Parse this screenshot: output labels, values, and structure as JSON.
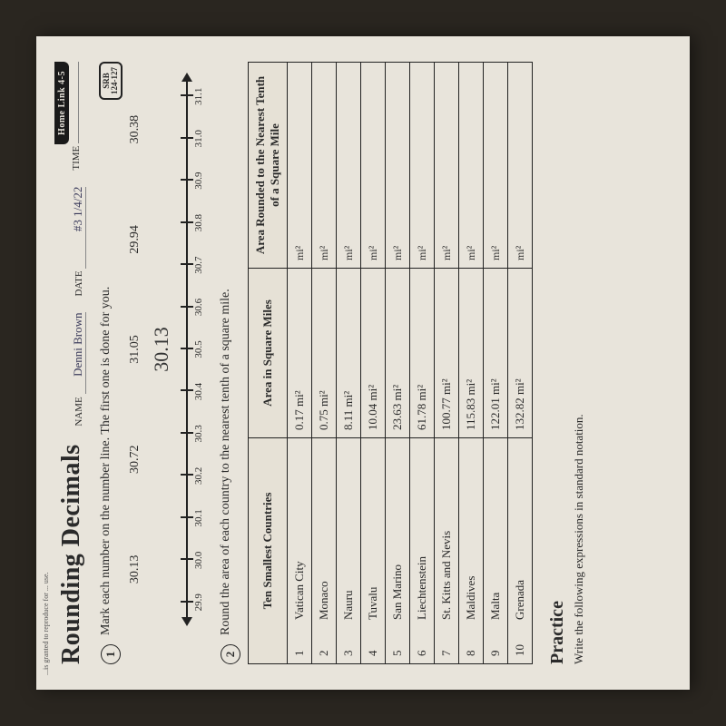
{
  "header": {
    "title": "Rounding Decimals",
    "home_link": "Home Link 4-5",
    "name_label": "NAME",
    "date_label": "DATE",
    "time_label": "TIME",
    "name_value": "Denni Brown",
    "date_value": "#3 1/4/22",
    "srb_top": "SRB",
    "srb_bottom": "124-127"
  },
  "p1": {
    "num": "1",
    "text": "Mark each number on the number line. The first one is done for you.",
    "decimals": [
      "30.13",
      "30.72",
      "31.05",
      "29.94",
      "30.38"
    ],
    "handwritten": "30.13",
    "ticks": [
      "29.9",
      "30.0",
      "30.1",
      "30.2",
      "30.3",
      "30.4",
      "30.5",
      "30.6",
      "30.7",
      "30.8",
      "30.9",
      "31.0",
      "31.1"
    ]
  },
  "p2": {
    "num": "2",
    "text": "Round the area of each country to the nearest tenth of a square mile."
  },
  "table": {
    "h1": "Ten Smallest Countries",
    "h2": "Area in Square Miles",
    "h3": "Area Rounded to the Nearest Tenth of a Square Mile",
    "unit": "mi²",
    "rows": [
      {
        "rank": "1",
        "name": "Vatican City",
        "area": "0.17 mi²"
      },
      {
        "rank": "2",
        "name": "Monaco",
        "area": "0.75 mi²"
      },
      {
        "rank": "3",
        "name": "Nauru",
        "area": "8.11 mi²"
      },
      {
        "rank": "4",
        "name": "Tuvalu",
        "area": "10.04 mi²"
      },
      {
        "rank": "5",
        "name": "San Marino",
        "area": "23.63 mi²"
      },
      {
        "rank": "6",
        "name": "Liechtenstein",
        "area": "61.78 mi²"
      },
      {
        "rank": "7",
        "name": "St. Kitts and Nevis",
        "area": "100.77 mi²"
      },
      {
        "rank": "8",
        "name": "Maldives",
        "area": "115.83 mi²"
      },
      {
        "rank": "9",
        "name": "Malta",
        "area": "122.01 mi²"
      },
      {
        "rank": "10",
        "name": "Grenada",
        "area": "132.82 mi²"
      }
    ]
  },
  "practice": {
    "heading": "Practice",
    "sub": "Write the following expressions in standard notation."
  },
  "footer": "...is granted to reproduce for ... use.",
  "style": {
    "page_bg": "#e8e4db",
    "ink": "#222222",
    "tick_count": 13
  }
}
